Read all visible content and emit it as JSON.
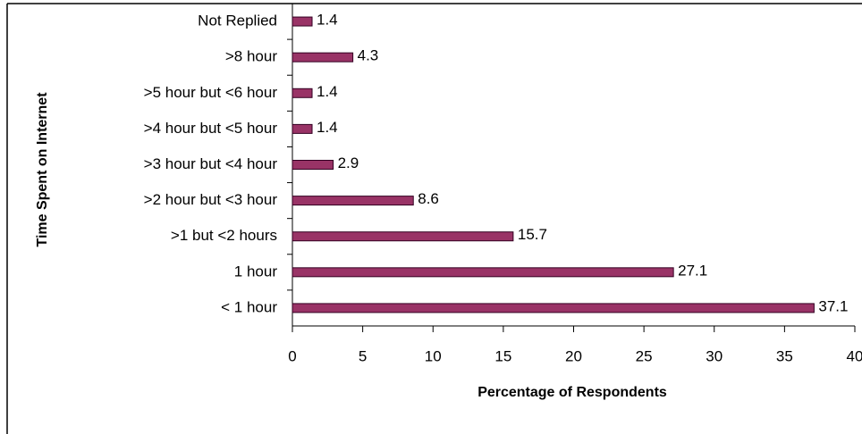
{
  "chart_data": {
    "type": "hbar",
    "xlabel": "Percentage of Respondents",
    "ylabel": "Time Spent on Internet",
    "categories": [
      "Not Replied",
      ">8 hour",
      ">5 hour but <6 hour",
      ">4 hour but <5 hour",
      ">3 hour but <4 hour",
      ">2 hour but <3 hour",
      ">1 but <2 hours",
      "1 hour",
      "< 1 hour"
    ],
    "values": [
      1.4,
      4.3,
      1.4,
      1.4,
      2.9,
      8.6,
      15.7,
      27.1,
      37.1
    ],
    "color": "#993366",
    "xlim": [
      0,
      40
    ],
    "xticks": [
      0,
      5,
      10,
      15,
      20,
      25,
      30,
      35,
      40
    ]
  }
}
